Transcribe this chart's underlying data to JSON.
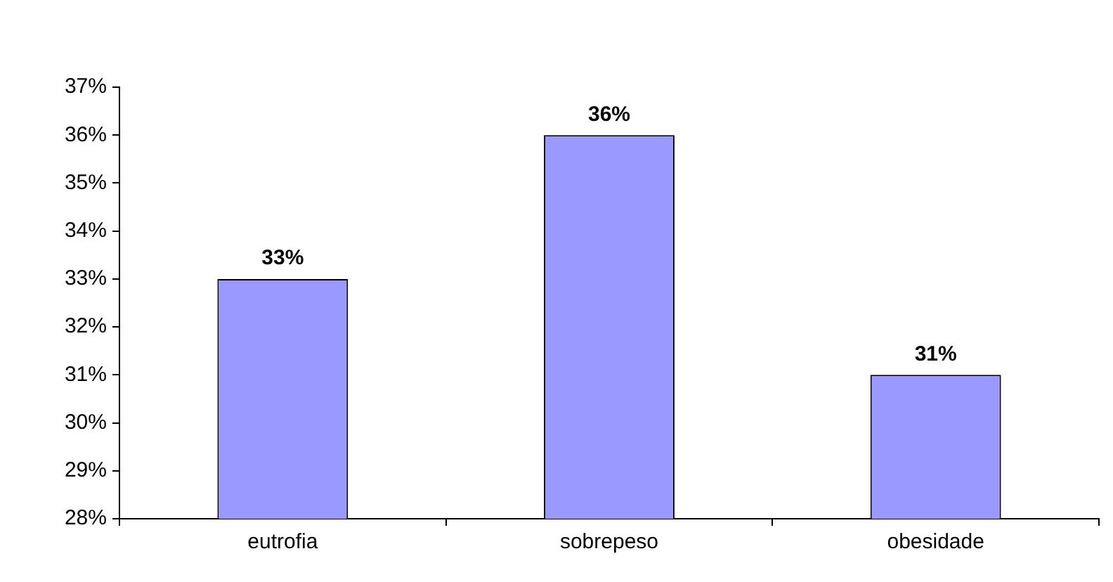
{
  "chart_data": {
    "type": "bar",
    "categories": [
      "eutrofia",
      "sobrepeso",
      "obesidade"
    ],
    "values": [
      33,
      36,
      31
    ],
    "color": "#9999ff",
    "value_labels": [
      "33%",
      "36%",
      "31%"
    ],
    "ylim": [
      28,
      37
    ],
    "yticks": [
      {
        "value": 28,
        "label": "28%"
      },
      {
        "value": 29,
        "label": "29%"
      },
      {
        "value": 30,
        "label": "30%"
      },
      {
        "value": 31,
        "label": "31%"
      },
      {
        "value": 32,
        "label": "32%"
      },
      {
        "value": 33,
        "label": "33%"
      },
      {
        "value": 34,
        "label": "34%"
      },
      {
        "value": 35,
        "label": "35%"
      },
      {
        "value": 36,
        "label": "36%"
      },
      {
        "value": 37,
        "label": "37%"
      }
    ],
    "grid": false,
    "legend": false
  }
}
